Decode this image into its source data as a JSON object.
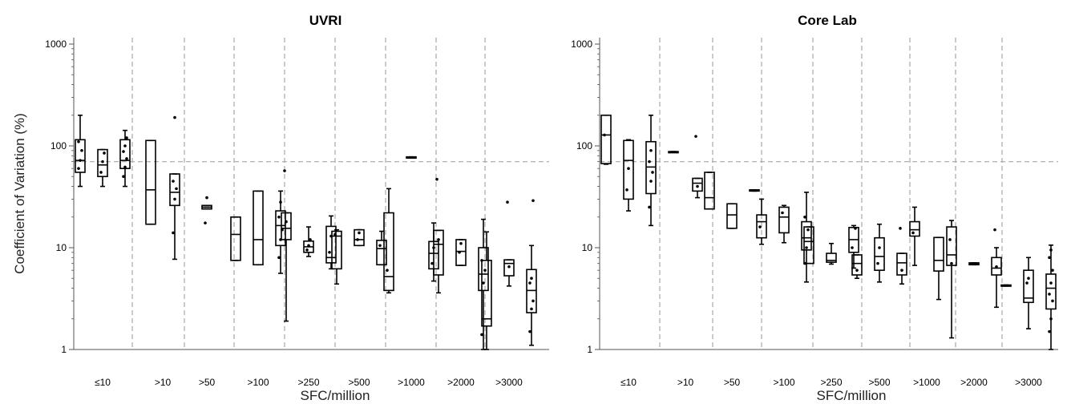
{
  "chart_data": [
    {
      "type": "box",
      "title": "UVRI",
      "xlabel": "SFC/million",
      "ylabel": "Coefficient of Variation (%)",
      "yscale": "log",
      "ylim": [
        1,
        1000
      ],
      "yticks": [
        "1",
        "10",
        "100",
        "1000"
      ],
      "reference_line_y": 70,
      "grid": false,
      "groups": [
        {
          "label": "≤10",
          "boxes": [
            {
              "min": 40,
              "q1": 55,
              "median": 72,
              "q3": 115,
              "max": 200,
              "points": [
                60,
                72,
                90,
                110
              ]
            },
            {
              "min": 40,
              "q1": 50,
              "median": 65,
              "q3": 92,
              "max": 92,
              "points": [
                55,
                70,
                85
              ]
            },
            {
              "min": 40,
              "q1": 60,
              "median": 72,
              "q3": 115,
              "max": 142,
              "points": [
                50,
                62,
                75,
                88,
                100,
                120
              ]
            }
          ]
        },
        {
          "label": ">10",
          "boxes": [
            {
              "min": 17,
              "q1": 17,
              "median": 37,
              "q3": 113,
              "max": 113,
              "points": []
            },
            {
              "min": 7.7,
              "q1": 26,
              "median": 35,
              "q3": 53,
              "max": 53,
              "points": [
                14,
                30,
                38,
                45,
                190
              ]
            }
          ]
        },
        {
          "label": ">50",
          "boxes": [
            {
              "min": 24,
              "q1": 24,
              "median": 25,
              "q3": 26,
              "max": 26,
              "points": [
                17.5,
                31
              ]
            }
          ]
        },
        {
          "label": ">100",
          "boxes": [
            {
              "min": 7.5,
              "q1": 7.5,
              "median": 13.5,
              "q3": 20,
              "max": 20,
              "points": []
            },
            {
              "min": 6.8,
              "q1": 6.8,
              "median": 12,
              "q3": 36,
              "max": 36,
              "points": []
            },
            {
              "min": 5.6,
              "q1": 10.5,
              "median": 16.5,
              "q3": 23,
              "max": 36,
              "points": [
                8,
                12,
                15,
                20,
                28
              ]
            }
          ]
        },
        {
          "label": ">250",
          "boxes": [
            {
              "min": 1.9,
              "q1": 12,
              "median": 15.5,
              "q3": 22,
              "max": 22,
              "points": [
                57,
                18
              ]
            },
            {
              "min": 8.2,
              "q1": 9,
              "median": 10.2,
              "q3": 11.6,
              "max": 16,
              "points": [
                9.5,
                10.5,
                12
              ]
            },
            {
              "min": 6.2,
              "q1": 7.1,
              "median": 8,
              "q3": 16.2,
              "max": 20.5,
              "points": [
                9,
                13
              ]
            }
          ]
        },
        {
          "label": ">500",
          "boxes": [
            {
              "min": 4.4,
              "q1": 6.2,
              "median": 13,
              "q3": 14.5,
              "max": 15,
              "points": [
                13.5
              ]
            },
            {
              "min": 10.5,
              "q1": 10.5,
              "median": 12,
              "q3": 15,
              "max": 15,
              "points": [
                12,
                14
              ]
            },
            {
              "min": 6.8,
              "q1": 6.8,
              "median": 9.8,
              "q3": 11.8,
              "max": 14.5,
              "points": [
                10.5
              ]
            }
          ]
        },
        {
          "label": ">1000",
          "boxes": [
            {
              "min": 3.6,
              "q1": 3.8,
              "median": 5.2,
              "q3": 22,
              "max": 38,
              "points": [
                6
              ]
            },
            {
              "min": 76,
              "q1": 76,
              "median": 77,
              "q3": 78,
              "max": 78,
              "points": []
            },
            {
              "min": 4.7,
              "q1": 6.2,
              "median": 8.8,
              "q3": 11.5,
              "max": 17.5,
              "points": [
                7,
                10
              ]
            }
          ]
        },
        {
          "label": ">2000",
          "boxes": [
            {
              "min": 3.6,
              "q1": 5.4,
              "median": 10.8,
              "q3": 14.8,
              "max": 14.8,
              "points": [
                47,
                12
              ]
            },
            {
              "min": 6.7,
              "q1": 6.7,
              "median": 9.2,
              "q3": 12,
              "max": 12,
              "points": [
                9,
                11
              ]
            },
            {
              "min": 1,
              "q1": 3.8,
              "median": 5.5,
              "q3": 10,
              "max": 19,
              "points": [
                1.4,
                4.5,
                6,
                7.5
              ]
            }
          ]
        },
        {
          "label": ">3000",
          "boxes": [
            {
              "min": 1,
              "q1": 1.7,
              "median": 2,
              "q3": 7.5,
              "max": 14.3,
              "points": []
            },
            {
              "min": 4.2,
              "q1": 5.3,
              "median": 7,
              "q3": 7.6,
              "max": 7.6,
              "points": [
                28,
                6.5
              ]
            },
            {
              "min": 1.1,
              "q1": 2.3,
              "median": 3.8,
              "q3": 6.1,
              "max": 10.5,
              "points": [
                1.5,
                2.5,
                3,
                4.5,
                5,
                29
              ]
            }
          ]
        }
      ]
    },
    {
      "type": "box",
      "title": "Core Lab",
      "xlabel": "SFC/million",
      "ylabel": "",
      "yscale": "log",
      "ylim": [
        1,
        1000
      ],
      "yticks": [
        "1",
        "10",
        "100",
        "1000"
      ],
      "reference_line_y": 70,
      "grid": false,
      "groups": [
        {
          "label": "≤10",
          "boxes": [
            {
              "min": 66,
              "q1": 67,
              "median": 128,
              "q3": 200,
              "max": 200,
              "points": [
                128
              ]
            },
            {
              "min": 23,
              "q1": 30,
              "median": 72,
              "q3": 113,
              "max": 115,
              "points": [
                37,
                60
              ]
            },
            {
              "min": 16.5,
              "q1": 34,
              "median": 62,
              "q3": 110,
              "max": 200,
              "points": [
                25,
                45,
                55,
                70,
                90
              ]
            }
          ]
        },
        {
          "label": ">10",
          "boxes": [
            {
              "min": 87,
              "q1": 87,
              "median": 87.5,
              "q3": 88,
              "max": 88,
              "points": []
            },
            {
              "min": 31,
              "q1": 36,
              "median": 43,
              "q3": 48,
              "max": 48,
              "points": [
                124,
                40
              ]
            }
          ]
        },
        {
          "label": ">50",
          "boxes": [
            {
              "min": 24,
              "q1": 24,
              "median": 31,
              "q3": 55,
              "max": 55,
              "points": []
            },
            {
              "min": 15.5,
              "q1": 15.5,
              "median": 21,
              "q3": 27,
              "max": 27,
              "points": []
            },
            {
              "min": 36,
              "q1": 36,
              "median": 36.5,
              "q3": 37,
              "max": 37,
              "points": []
            }
          ]
        },
        {
          "label": ">100",
          "boxes": [
            {
              "min": 10.8,
              "q1": 12.5,
              "median": 18,
              "q3": 21,
              "max": 30,
              "points": [
                16
              ]
            },
            {
              "min": 11.2,
              "q1": 14,
              "median": 20,
              "q3": 25,
              "max": 26,
              "points": [
                22
              ]
            },
            {
              "min": 4.6,
              "q1": 9.5,
              "median": 12.5,
              "q3": 18,
              "max": 35,
              "points": [
                7,
                10,
                15,
                20
              ]
            }
          ]
        },
        {
          "label": ">250",
          "boxes": [
            {
              "min": 7,
              "q1": 7,
              "median": 11.5,
              "q3": 16,
              "max": 16,
              "points": []
            },
            {
              "min": 6.9,
              "q1": 7.2,
              "median": 7.5,
              "q3": 8.8,
              "max": 11,
              "points": []
            },
            {
              "min": 6.3,
              "q1": 9,
              "median": 12,
              "q3": 15.8,
              "max": 16.5,
              "points": [
                10
              ]
            }
          ]
        },
        {
          "label": ">500",
          "boxes": [
            {
              "min": 5,
              "q1": 5.4,
              "median": 7,
              "q3": 8.5,
              "max": 8.5,
              "points": [
                15.5,
                6
              ]
            },
            {
              "min": 4.6,
              "q1": 6,
              "median": 8.2,
              "q3": 12.5,
              "max": 17,
              "points": [
                7,
                10
              ]
            },
            {
              "min": 4.4,
              "q1": 5.4,
              "median": 7.1,
              "q3": 8.8,
              "max": 8.8,
              "points": [
                15.5,
                6
              ]
            }
          ]
        },
        {
          "label": ">1000",
          "boxes": [
            {
              "min": 6.7,
              "q1": 13,
              "median": 15,
              "q3": 18,
              "max": 25,
              "points": [
                14
              ]
            },
            {
              "min": 3.1,
              "q1": 5.9,
              "median": 7.5,
              "q3": 12.6,
              "max": 12.6,
              "points": []
            }
          ]
        },
        {
          "label": ">2000",
          "boxes": [
            {
              "min": 1.3,
              "q1": 6.7,
              "median": 8.5,
              "q3": 16,
              "max": 18.5,
              "points": [
                12,
                7
              ]
            },
            {
              "min": 6.8,
              "q1": 6.8,
              "median": 7,
              "q3": 7.1,
              "max": 7.1,
              "points": []
            },
            {
              "min": 2.6,
              "q1": 5.4,
              "median": 6.3,
              "q3": 8,
              "max": 10,
              "points": [
                15,
                6.5
              ]
            }
          ]
        },
        {
          "label": ">3000",
          "boxes": [
            {
              "min": 4.2,
              "q1": 4.2,
              "median": 4.25,
              "q3": 4.3,
              "max": 4.3,
              "points": []
            },
            {
              "min": 1.6,
              "q1": 2.9,
              "median": 3.2,
              "q3": 6,
              "max": 8,
              "points": [
                4.5,
                5
              ]
            },
            {
              "min": 1,
              "q1": 2.5,
              "median": 4,
              "q3": 5.5,
              "max": 10.6,
              "points": [
                1.5,
                2,
                3,
                3.5,
                4.5,
                6,
                8,
                9.5
              ]
            }
          ]
        }
      ]
    }
  ]
}
